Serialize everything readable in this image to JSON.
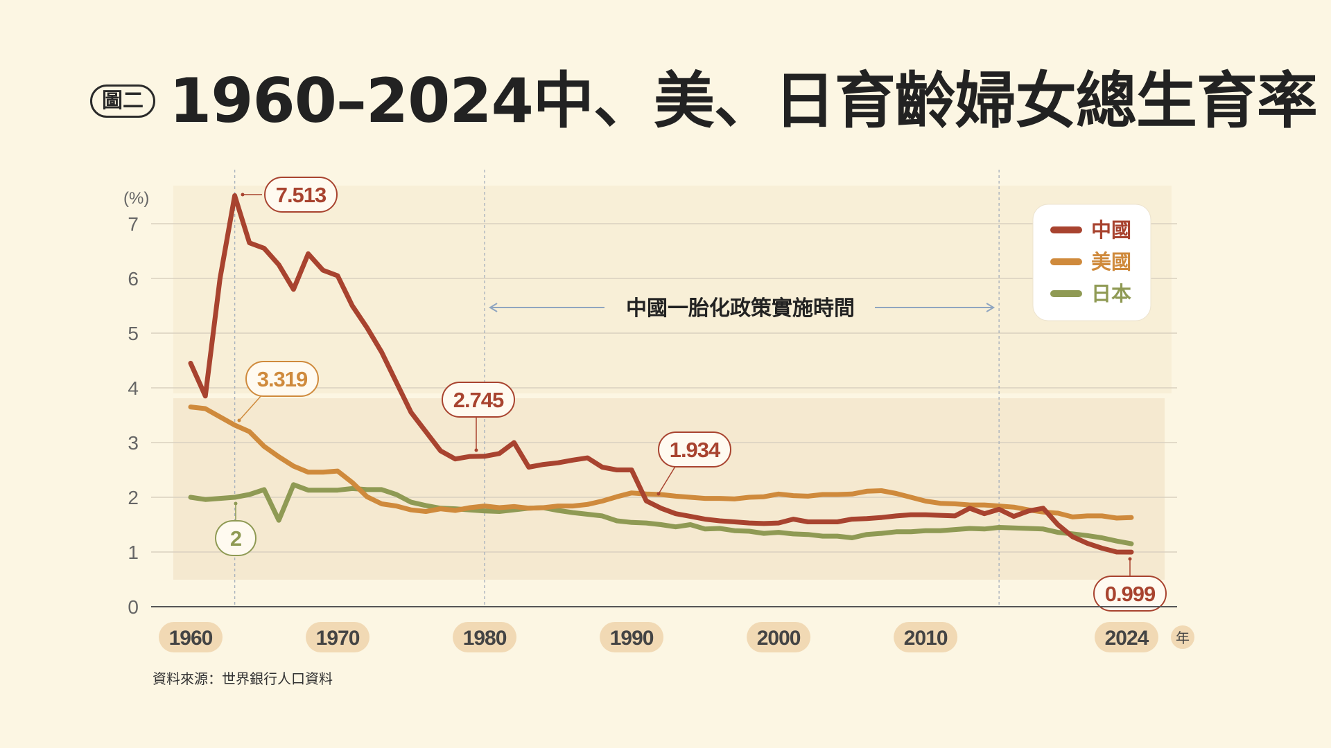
{
  "figure": {
    "tag": "圖二",
    "title": "1960–2024中、美、日育齡婦女總生育率"
  },
  "source": "資料來源：世界銀行人口資料",
  "colors": {
    "china": "#a8432f",
    "usa": "#cf8a3c",
    "japan": "#8f9a54",
    "background": "#fcf6e3"
  },
  "chart_data": {
    "type": "line",
    "title": "1960–2024中、美、日育齡婦女總生育率",
    "ylabel": "(%)",
    "xlabel": "年",
    "xlim": [
      1960,
      2024
    ],
    "ylim": [
      0,
      7
    ],
    "grid": true,
    "legend_position": "top-right",
    "yticks": [
      0,
      1,
      2,
      3,
      4,
      5,
      6,
      7
    ],
    "x_tick_labels": [
      "1960",
      "1970",
      "1980",
      "1990",
      "2000",
      "2010",
      "2024"
    ],
    "x_tick_values": [
      1960,
      1970,
      1980,
      1990,
      2000,
      2010,
      2024
    ],
    "x_unit_label": "年",
    "policy_span": {
      "label": "中國一胎化政策實施時間",
      "start": 1980,
      "end": 2015
    },
    "x": [
      1960,
      1961,
      1962,
      1963,
      1964,
      1965,
      1966,
      1967,
      1968,
      1969,
      1970,
      1971,
      1972,
      1973,
      1974,
      1975,
      1976,
      1977,
      1978,
      1979,
      1980,
      1981,
      1982,
      1983,
      1984,
      1985,
      1986,
      1987,
      1988,
      1989,
      1990,
      1991,
      1992,
      1993,
      1994,
      1995,
      1996,
      1997,
      1998,
      1999,
      2000,
      2001,
      2002,
      2003,
      2004,
      2005,
      2006,
      2007,
      2008,
      2009,
      2010,
      2011,
      2012,
      2013,
      2014,
      2015,
      2016,
      2017,
      2018,
      2019,
      2020,
      2021,
      2022,
      2023,
      2024
    ],
    "series": [
      {
        "name": "中國",
        "color": "#a8432f",
        "values": [
          4.45,
          3.85,
          6.0,
          7.513,
          6.65,
          6.55,
          6.25,
          5.8,
          6.45,
          6.15,
          6.05,
          5.5,
          5.1,
          4.65,
          4.1,
          3.55,
          3.2,
          2.85,
          2.7,
          2.745,
          2.75,
          2.8,
          3.0,
          2.55,
          2.6,
          2.63,
          2.68,
          2.72,
          2.55,
          2.5,
          2.5,
          1.934,
          1.8,
          1.7,
          1.65,
          1.6,
          1.57,
          1.55,
          1.53,
          1.52,
          1.53,
          1.6,
          1.55,
          1.55,
          1.55,
          1.6,
          1.61,
          1.63,
          1.66,
          1.68,
          1.68,
          1.67,
          1.66,
          1.8,
          1.7,
          1.78,
          1.65,
          1.75,
          1.8,
          1.5,
          1.28,
          1.16,
          1.07,
          1.0,
          0.999
        ]
      },
      {
        "name": "美國",
        "color": "#cf8a3c",
        "values": [
          3.65,
          3.62,
          3.47,
          3.319,
          3.2,
          2.93,
          2.74,
          2.57,
          2.46,
          2.46,
          2.48,
          2.27,
          2.01,
          1.88,
          1.84,
          1.77,
          1.74,
          1.79,
          1.76,
          1.81,
          1.84,
          1.81,
          1.83,
          1.8,
          1.81,
          1.84,
          1.84,
          1.87,
          1.93,
          2.01,
          2.08,
          2.06,
          2.05,
          2.02,
          2.0,
          1.98,
          1.98,
          1.97,
          2.0,
          2.01,
          2.06,
          2.03,
          2.02,
          2.05,
          2.05,
          2.06,
          2.11,
          2.12,
          2.07,
          2.0,
          1.93,
          1.89,
          1.88,
          1.86,
          1.86,
          1.84,
          1.82,
          1.77,
          1.73,
          1.71,
          1.64,
          1.66,
          1.66,
          1.62,
          1.63
        ]
      },
      {
        "name": "日本",
        "color": "#8f9a54",
        "values": [
          2.0,
          1.96,
          1.98,
          2.0,
          2.05,
          2.14,
          1.58,
          2.23,
          2.13,
          2.13,
          2.13,
          2.16,
          2.14,
          2.14,
          2.05,
          1.91,
          1.85,
          1.8,
          1.79,
          1.77,
          1.75,
          1.74,
          1.77,
          1.8,
          1.81,
          1.76,
          1.72,
          1.69,
          1.66,
          1.57,
          1.54,
          1.53,
          1.5,
          1.46,
          1.5,
          1.42,
          1.43,
          1.39,
          1.38,
          1.34,
          1.36,
          1.33,
          1.32,
          1.29,
          1.29,
          1.26,
          1.32,
          1.34,
          1.37,
          1.37,
          1.39,
          1.39,
          1.41,
          1.43,
          1.42,
          1.45,
          1.44,
          1.43,
          1.42,
          1.36,
          1.33,
          1.3,
          1.26,
          1.2,
          1.15
        ]
      }
    ],
    "annotations": [
      {
        "series": "中國",
        "x": 1963,
        "y": 7.513,
        "text": "7.513"
      },
      {
        "series": "美國",
        "x": 1963,
        "y": 3.319,
        "text": "3.319"
      },
      {
        "series": "日本",
        "x": 1963,
        "y": 2.0,
        "text": "2"
      },
      {
        "series": "中國",
        "x": 1979,
        "y": 2.745,
        "text": "2.745"
      },
      {
        "series": "中國",
        "x": 1991,
        "y": 1.934,
        "text": "1.934"
      },
      {
        "series": "中國",
        "x": 2024,
        "y": 0.999,
        "text": "0.999"
      }
    ]
  }
}
